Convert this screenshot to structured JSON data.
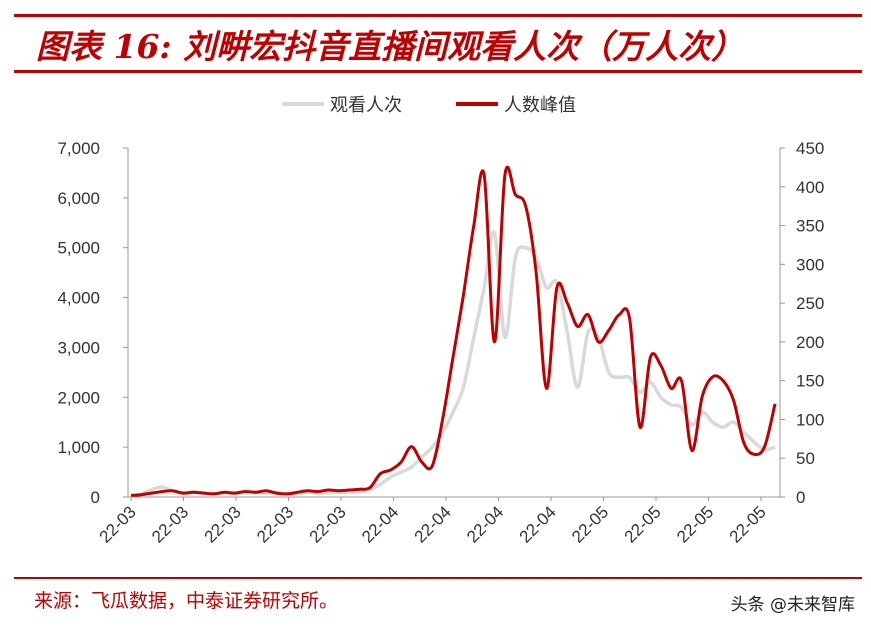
{
  "header": {
    "title": "图表 16: 刘畊宏抖音直播间观看人次（万人次）"
  },
  "footer": {
    "source": "来源：飞瓜数据，中泰证券研究所。",
    "watermark": "头条 @未来智库"
  },
  "colors": {
    "accent": "#c00000",
    "series_views": "#d9d9d9",
    "series_peak": "#c00000"
  },
  "chart_data": {
    "type": "line",
    "title": "",
    "xlabel": "",
    "ylabel": "",
    "y_left_lim": [
      0,
      7000
    ],
    "y_left_ticks": [
      0,
      1000,
      2000,
      3000,
      4000,
      5000,
      6000,
      7000
    ],
    "y_left_tick_labels": [
      "0",
      "1,000",
      "2,000",
      "3,000",
      "4,000",
      "5,000",
      "6,000",
      "7,000"
    ],
    "y_right_lim": [
      0,
      450
    ],
    "y_right_ticks": [
      0,
      50,
      100,
      150,
      200,
      250,
      300,
      350,
      400,
      450
    ],
    "y_right_tick_labels": [
      "0",
      "50",
      "100",
      "150",
      "200",
      "250",
      "300",
      "350",
      "400",
      "450"
    ],
    "x_tick_labels": [
      "22-03",
      "22-03",
      "22-03",
      "22-03",
      "22-03",
      "22-04",
      "22-04",
      "22-04",
      "22-04",
      "22-05",
      "22-05",
      "22-05",
      "22-05"
    ],
    "grid": false,
    "legend_position": "top-center",
    "x": [
      0,
      2,
      4,
      6,
      8,
      10,
      12,
      14,
      16,
      18,
      20,
      22,
      24,
      26,
      28,
      30,
      32,
      34,
      36,
      38,
      40,
      42,
      44,
      46,
      48,
      50,
      52,
      54,
      56,
      58,
      60,
      62,
      64,
      66,
      68,
      70,
      72,
      74,
      76,
      78,
      80,
      82,
      84,
      86,
      88,
      90,
      92,
      94,
      96,
      98,
      100,
      102,
      104,
      106,
      108,
      110,
      112,
      114,
      116,
      118,
      120,
      122,
      124
    ],
    "series": [
      {
        "name": "观看人次",
        "axis": "left",
        "values": [
          30,
          60,
          150,
          200,
          120,
          80,
          100,
          80,
          70,
          90,
          80,
          120,
          100,
          80,
          90,
          60,
          70,
          100,
          80,
          90,
          90,
          100,
          100,
          150,
          250,
          400,
          500,
          600,
          800,
          1000,
          1300,
          1700,
          2200,
          3200,
          4200,
          5300,
          3200,
          4800,
          5000,
          4800,
          4200,
          4300,
          3300,
          2200,
          3300,
          3200,
          2500,
          2400,
          2400,
          2100,
          2300,
          2000,
          1850,
          1800,
          1450,
          1700,
          1500,
          1400,
          1500,
          1300,
          1100,
          950,
          1000
        ]
      },
      {
        "name": "人数峰值",
        "axis": "right",
        "values": [
          2,
          3,
          5,
          7,
          8,
          5,
          6,
          5,
          4,
          6,
          5,
          7,
          6,
          8,
          5,
          4,
          6,
          8,
          7,
          9,
          8,
          9,
          10,
          12,
          30,
          35,
          45,
          65,
          45,
          40,
          100,
          180,
          260,
          350,
          415,
          200,
          415,
          390,
          375,
          290,
          140,
          270,
          250,
          220,
          235,
          200,
          215,
          235,
          230,
          90,
          180,
          170,
          140,
          150,
          60,
          130,
          155,
          150,
          125,
          70,
          55,
          65,
          120
        ]
      }
    ]
  }
}
